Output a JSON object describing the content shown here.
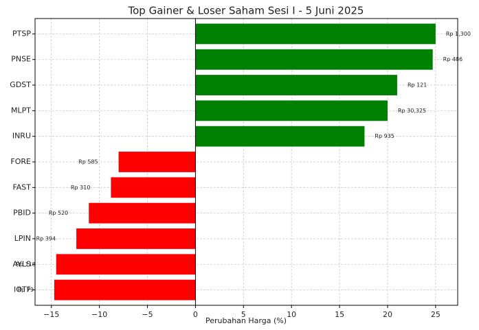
{
  "chart_data": {
    "type": "hbar",
    "title": "Top Gainer & Loser Saham Sesi I - 5 Juni 2025",
    "xlabel": "Perubahan Harga (%)",
    "categories": [
      "PTSP",
      "PNSE",
      "GDST",
      "MLPT",
      "INRU",
      "FORE",
      "FAST",
      "PBID",
      "LPIN",
      "AYLS",
      "IOTF"
    ],
    "values": [
      25,
      24.7,
      21,
      20,
      17.6,
      -8,
      -8.8,
      -11.1,
      -12.4,
      -14.5,
      -14.7
    ],
    "colors": [
      "green",
      "green",
      "green",
      "green",
      "green",
      "red",
      "red",
      "red",
      "red",
      "red",
      "red"
    ],
    "price_labels": [
      "Rp 1,300",
      "Rp 486",
      "Rp 121",
      "Rp 30,325",
      "Rp 935",
      "Rp 585",
      "Rp 310",
      "Rp 520",
      "Rp 394",
      "Rp 118",
      "Rp 79"
    ],
    "xlim": [
      -16.7,
      27.3
    ],
    "xticks": [
      {
        "value": -15,
        "label": "−15"
      },
      {
        "value": -10,
        "label": "−10"
      },
      {
        "value": -5,
        "label": "−5"
      },
      0,
      5,
      10,
      15,
      20,
      25
    ],
    "grid": true
  }
}
